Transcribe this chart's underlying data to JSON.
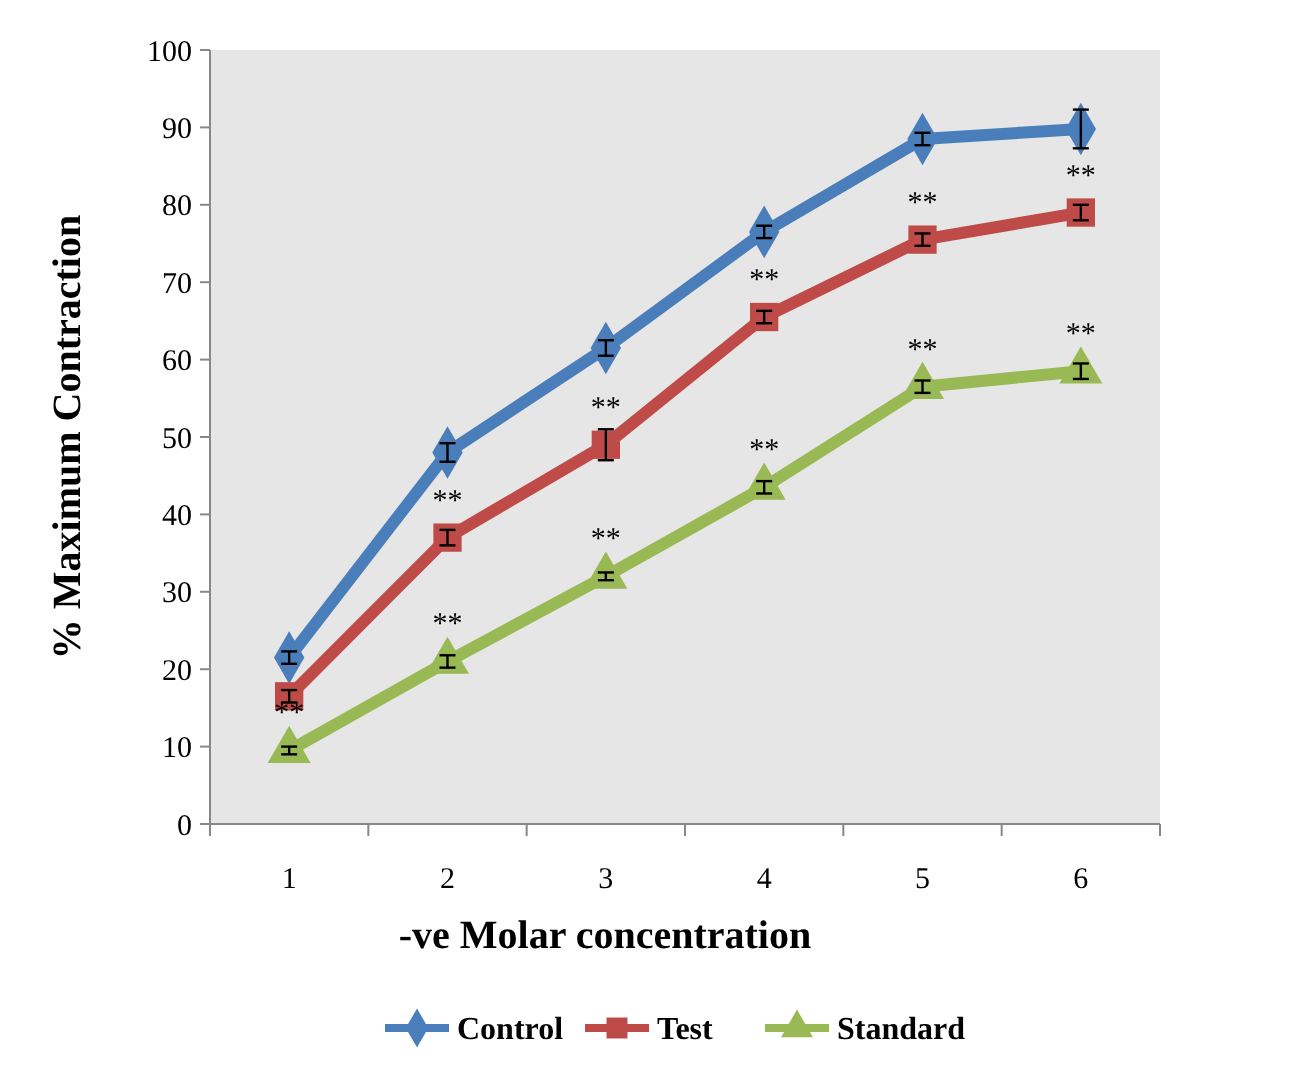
{
  "chart_data": {
    "type": "line",
    "xlabel": "-ve Molar concentration",
    "ylabel": "% Maximum Contraction",
    "categories": [
      "1",
      "2",
      "3",
      "4",
      "5",
      "6"
    ],
    "series": [
      {
        "name": "Control",
        "color": "#4a7ebb",
        "marker": "diamond",
        "values": [
          21.5,
          48,
          61.5,
          76.5,
          88.5,
          89.8
        ],
        "errors": [
          0.8,
          1.2,
          1,
          0.8,
          0.8,
          2.5
        ]
      },
      {
        "name": "Test",
        "color": "#be4b48",
        "marker": "square",
        "values": [
          16.5,
          37,
          49,
          65.5,
          75.5,
          79
        ],
        "errors": [
          0.8,
          1,
          2,
          0.8,
          0.8,
          1
        ]
      },
      {
        "name": "Standard",
        "color": "#98b954",
        "marker": "triangle",
        "values": [
          9.5,
          21,
          32,
          43.5,
          56.5,
          58.5
        ],
        "errors": [
          0.5,
          0.8,
          0.5,
          0.8,
          0.8,
          1
        ]
      }
    ],
    "ylim": [
      0,
      100
    ],
    "yticks": [
      0,
      10,
      20,
      30,
      40,
      50,
      60,
      70,
      80,
      90,
      100
    ],
    "grid": false,
    "legend": "bottom",
    "line_style": "solid",
    "annotations": [
      {
        "text": "**",
        "x": "2",
        "y": 37
      },
      {
        "text": "**",
        "x": "3",
        "y": 49
      },
      {
        "text": "**",
        "x": "4",
        "y": 65.5
      },
      {
        "text": "**",
        "x": "5",
        "y": 75.5
      },
      {
        "text": "**",
        "x": "6",
        "y": 79
      },
      {
        "text": "**",
        "x": "1",
        "y": 9.5
      },
      {
        "text": "**",
        "x": "2",
        "y": 21
      },
      {
        "text": "**",
        "x": "3",
        "y": 32
      },
      {
        "text": "**",
        "x": "4",
        "y": 43.5
      },
      {
        "text": "**",
        "x": "5",
        "y": 56.5
      },
      {
        "text": "**",
        "x": "6",
        "y": 58.5
      }
    ]
  }
}
